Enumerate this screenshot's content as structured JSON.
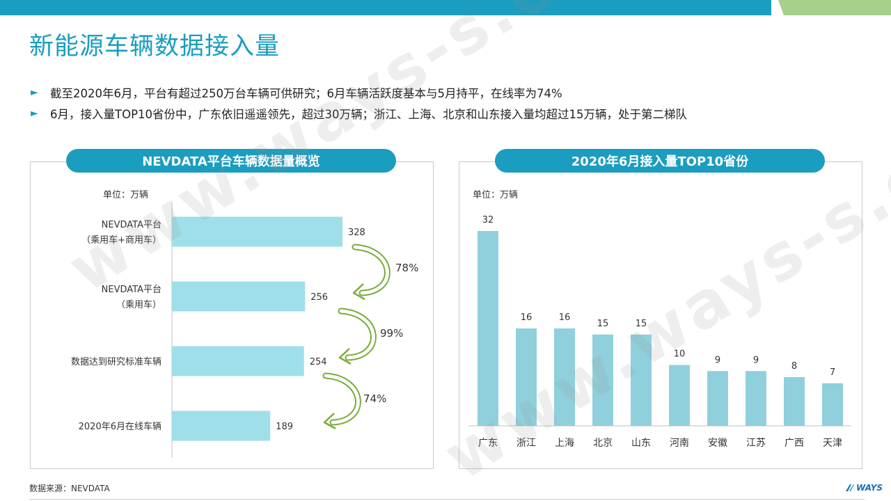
{
  "page_title": "新能源车辆数据接入量",
  "bullets": [
    "截至2020年6月，平台有超过250万台车辆可供研究；6月车辆活跃度基本与5月持平，在线率为74%",
    "6月，接入量TOP10省份中，广东依旧遥遥领先，超过30万辆；浙江、上海、北京和山东接入量均超过15万辆，处于第二梯队"
  ],
  "watermark": "www.ways-s.cn",
  "source": "数据来源：NEVDATA",
  "logo": "WAYS",
  "colors": {
    "accent": "#1a9dbf",
    "bar_left": "#9fdfe9",
    "bar_right": "#8fd0dc",
    "arrow": "#7aab3a",
    "top_bar": "#1a9dbf",
    "top_bar_green": "#a8d08d"
  },
  "left_panel": {
    "header": "NEVDATA平台车辆数据量概览",
    "unit": "单位：万辆"
  },
  "right_panel": {
    "header": "2020年6月接入量TOP10省份",
    "unit": "单位：万辆"
  },
  "chart_data": [
    {
      "type": "bar",
      "orientation": "horizontal",
      "title": "NEVDATA平台车辆数据量概览",
      "unit": "单位：万辆",
      "categories": [
        [
          "NEVDATA平台",
          "（乘用车+商用车）"
        ],
        [
          "NEVDATA平台",
          "（乘用车）"
        ],
        [
          "数据达到研究标准车辆"
        ],
        [
          "2020年6月在线车辆"
        ]
      ],
      "values": [
        328,
        256,
        254,
        189
      ],
      "annotations": [
        "78%",
        "99%",
        "74%"
      ],
      "grid": false
    },
    {
      "type": "bar",
      "orientation": "vertical",
      "title": "2020年6月接入量TOP10省份",
      "unit": "单位：万辆",
      "categories": [
        "广东",
        "浙江",
        "上海",
        "北京",
        "山东",
        "河南",
        "安徽",
        "江苏",
        "广西",
        "天津"
      ],
      "values": [
        32,
        16,
        16,
        15,
        15,
        10,
        9,
        9,
        8,
        7
      ],
      "grid": false
    }
  ]
}
